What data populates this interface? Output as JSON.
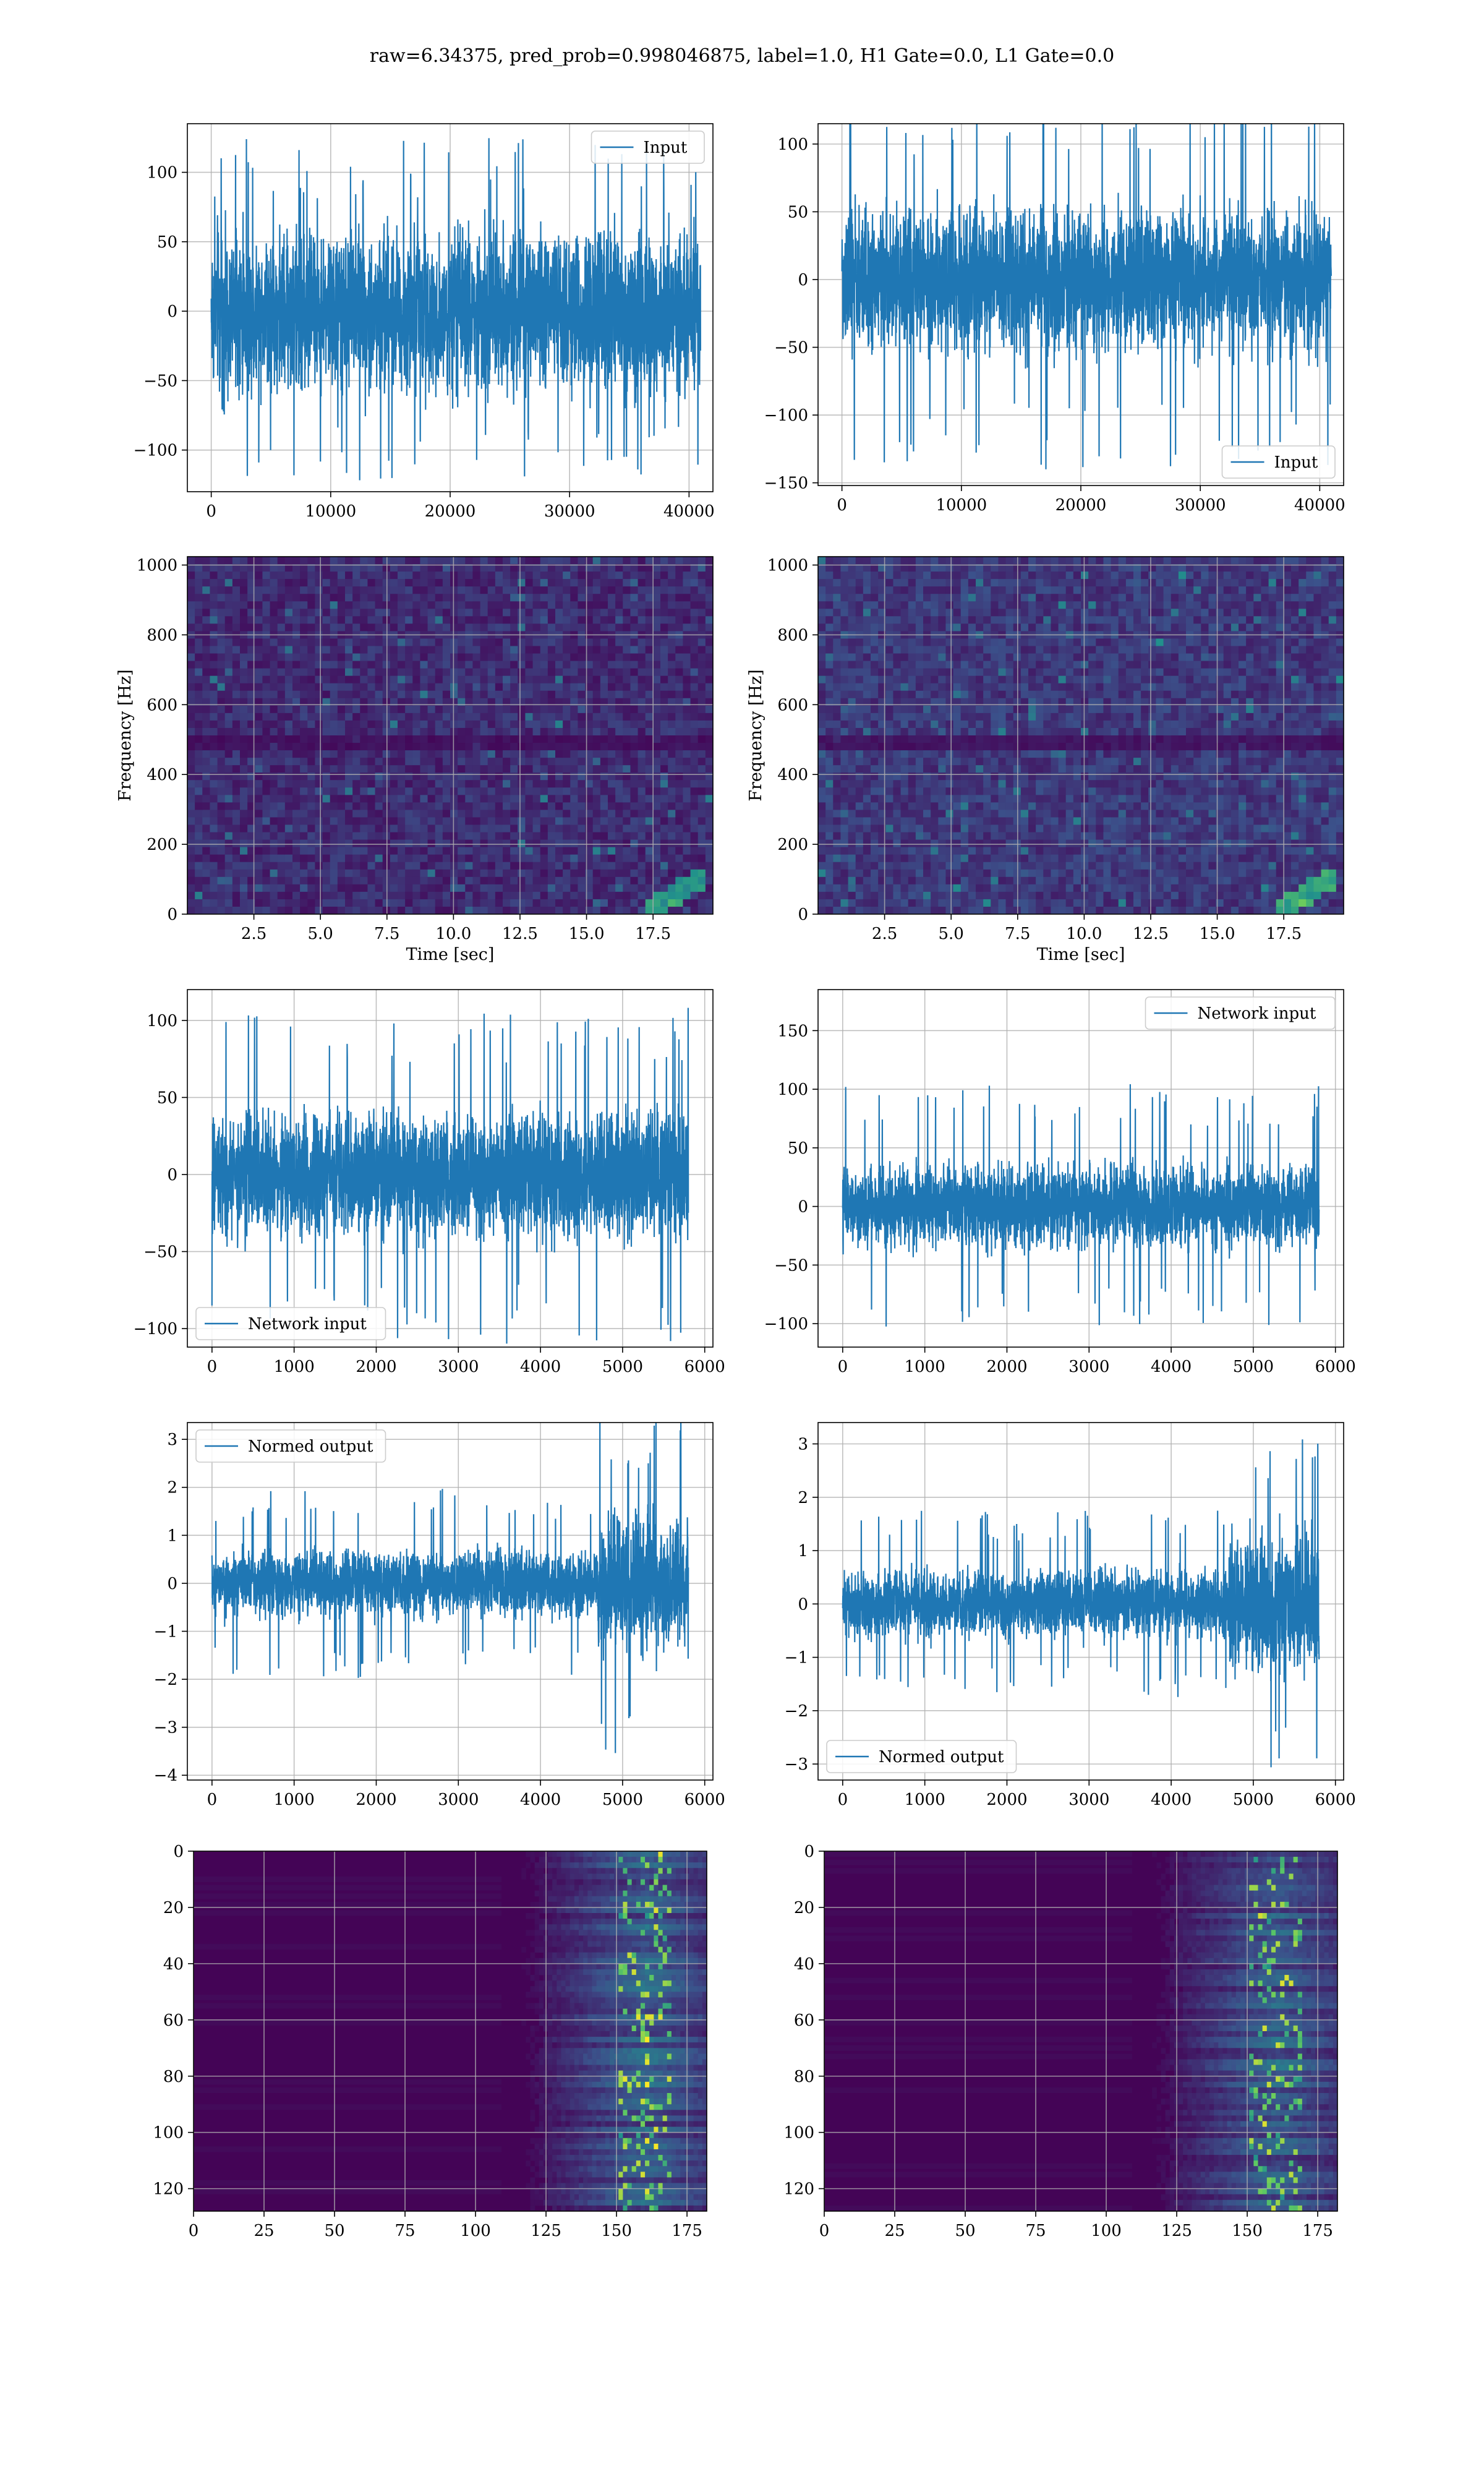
{
  "figure": {
    "title": "raw=6.34375, pred_prob=0.998046875, label=1.0, H1 Gate=0.0, L1 Gate=0.0"
  },
  "colors": {
    "line": "#1f77b4",
    "grid": "#b0b0b0",
    "viridis_low": "#440154",
    "viridis_high": "#fde725"
  },
  "chart_data": [
    {
      "id": "input-h1",
      "type": "line",
      "legend": "Input",
      "legend_loc": "upper right",
      "xlim": [
        -2000,
        42000
      ],
      "ylim": [
        -130,
        135
      ],
      "xticks": [
        0,
        10000,
        20000,
        30000,
        40000
      ],
      "yticks": [
        -100,
        -50,
        0,
        50,
        100
      ],
      "x_range": [
        0,
        40960
      ],
      "amp_core": 50,
      "amp_peak": 125,
      "grid": true
    },
    {
      "id": "input-l1",
      "type": "line",
      "legend": "Input",
      "legend_loc": "lower right",
      "xlim": [
        -2000,
        42000
      ],
      "ylim": [
        -152,
        115
      ],
      "xticks": [
        0,
        10000,
        20000,
        30000,
        40000
      ],
      "yticks": [
        -150,
        -100,
        -50,
        0,
        50,
        100
      ],
      "x_range": [
        0,
        40960
      ],
      "amp_core": 45,
      "amp_peak": 140,
      "grid": true
    },
    {
      "id": "spectrogram-h1",
      "type": "heatmap",
      "xlabel": "Time [sec]",
      "ylabel": "Frequency [Hz]",
      "xlim": [
        0,
        19.75
      ],
      "ylim": [
        0,
        1024
      ],
      "xticks": [
        "2.5",
        "5.0",
        "7.5",
        "10.0",
        "12.5",
        "15.0",
        "17.5"
      ],
      "xtick_vals": [
        2.5,
        5,
        7.5,
        10,
        12.5,
        15,
        17.5
      ],
      "yticks": [
        0,
        200,
        400,
        600,
        800,
        1000
      ],
      "colormap": "viridis",
      "grid": true
    },
    {
      "id": "spectrogram-l1",
      "type": "heatmap",
      "xlabel": "Time [sec]",
      "ylabel": "Frequency [Hz]",
      "xlim": [
        0,
        19.75
      ],
      "ylim": [
        0,
        1024
      ],
      "xticks": [
        "2.5",
        "5.0",
        "7.5",
        "10.0",
        "12.5",
        "15.0",
        "17.5"
      ],
      "xtick_vals": [
        2.5,
        5,
        7.5,
        10,
        12.5,
        15,
        17.5
      ],
      "yticks": [
        0,
        200,
        400,
        600,
        800,
        1000
      ],
      "colormap": "viridis",
      "grid": true
    },
    {
      "id": "network-input-h1",
      "type": "line",
      "legend": "Network input",
      "legend_loc": "lower left",
      "xlim": [
        -300,
        6100
      ],
      "ylim": [
        -112,
        120
      ],
      "xticks": [
        0,
        1000,
        2000,
        3000,
        4000,
        5000,
        6000
      ],
      "yticks": [
        -100,
        -50,
        0,
        50,
        100
      ],
      "x_range": [
        0,
        5800
      ],
      "amp_core": 35,
      "amp_peak": 110,
      "grid": true
    },
    {
      "id": "network-input-l1",
      "type": "line",
      "legend": "Network input",
      "legend_loc": "upper right",
      "xlim": [
        -300,
        6100
      ],
      "ylim": [
        -120,
        185
      ],
      "xticks": [
        0,
        1000,
        2000,
        3000,
        4000,
        5000,
        6000
      ],
      "yticks": [
        -100,
        -50,
        0,
        50,
        100,
        150
      ],
      "x_range": [
        0,
        5800
      ],
      "amp_core": 30,
      "amp_peak": 105,
      "grid": true
    },
    {
      "id": "normed-output-h1",
      "type": "line",
      "legend": "Normed output",
      "legend_loc": "upper left",
      "xlim": [
        -300,
        6100
      ],
      "ylim": [
        -4.1,
        3.35
      ],
      "xticks": [
        0,
        1000,
        2000,
        3000,
        4000,
        5000,
        6000
      ],
      "yticks": [
        -4,
        -3,
        -2,
        -1,
        0,
        1,
        2,
        3
      ],
      "x_range": [
        0,
        5800
      ],
      "amp_core": 0.6,
      "amp_peak": 3.6,
      "burst_start": 4700,
      "grid": true
    },
    {
      "id": "normed-output-l1",
      "type": "line",
      "legend": "Normed output",
      "legend_loc": "lower left",
      "xlim": [
        -300,
        6100
      ],
      "ylim": [
        -3.3,
        3.4
      ],
      "xticks": [
        0,
        1000,
        2000,
        3000,
        4000,
        5000,
        6000
      ],
      "yticks": [
        -3,
        -2,
        -1,
        0,
        1,
        2,
        3
      ],
      "x_range": [
        0,
        5800
      ],
      "amp_core": 0.55,
      "amp_peak": 3.2,
      "burst_start": 4700,
      "grid": true
    },
    {
      "id": "feature-map-h1",
      "type": "heatmap",
      "xlim": [
        0,
        182
      ],
      "ylim": [
        128,
        0
      ],
      "xticks": [
        0,
        25,
        50,
        75,
        100,
        125,
        150,
        175
      ],
      "yticks": [
        0,
        20,
        40,
        60,
        80,
        100,
        120
      ],
      "colormap": "viridis",
      "grid": true
    },
    {
      "id": "feature-map-l1",
      "type": "heatmap",
      "xlim": [
        0,
        182
      ],
      "ylim": [
        128,
        0
      ],
      "xticks": [
        0,
        25,
        50,
        75,
        100,
        125,
        150,
        175
      ],
      "yticks": [
        0,
        20,
        40,
        60,
        80,
        100,
        120
      ],
      "colormap": "viridis",
      "grid": true
    }
  ]
}
